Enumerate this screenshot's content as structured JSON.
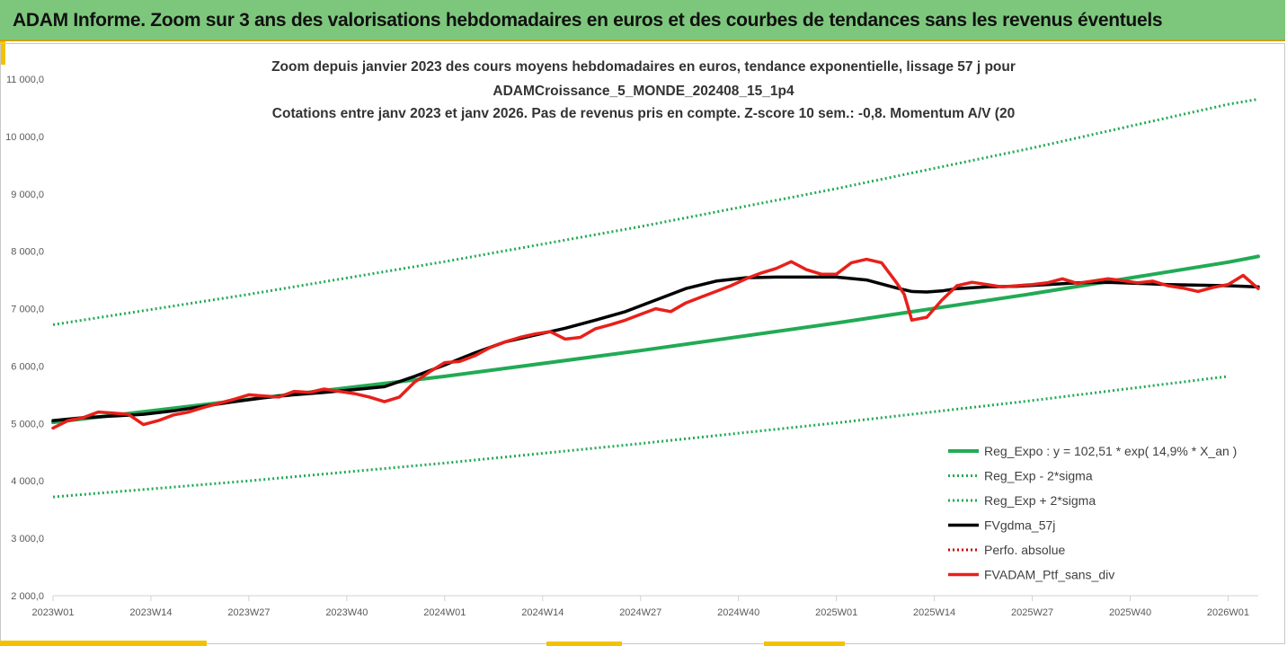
{
  "banner": {
    "title": "ADAM Informe. Zoom sur 3 ans des valorisations hebdomadaires en euros et des courbes de tendances sans les revenus éventuels"
  },
  "colors": {
    "banner_bg": "#7dc77d",
    "accent": "#f2c200",
    "trend": "#22aa55",
    "bands": "#22aa55",
    "smoothed": "#000000",
    "perf": "#cc0000",
    "price": "#e8201a"
  },
  "chart_data": {
    "type": "line",
    "title_lines": [
      "Zoom depuis janvier 2023 des cours moyens hebdomadaires  en euros, tendance exponentielle, lissage 57 j pour",
      "ADAMCroissance_5_MONDE_202408_15_1p4",
      "Cotations entre janv 2023 et janv 2026. Pas de revenus pris en compte. Z-score 10 sem.: -0,8. Momentum  A/V (20"
    ],
    "xlabel": "",
    "ylabel": "",
    "x_tick_labels": [
      "2023W01",
      "2023W14",
      "2023W27",
      "2023W40",
      "2024W01",
      "2024W14",
      "2024W27",
      "2024W40",
      "2025W01",
      "2025W14",
      "2025W27",
      "2025W40",
      "2026W01"
    ],
    "y_tick_labels": [
      "2 000,0",
      "3 000,0",
      "4 000,0",
      "5 000,0",
      "6 000,0",
      "7 000,0",
      "8 000,0",
      "9 000,0",
      "10 000,0",
      "11 000,0"
    ],
    "ylim": [
      2000,
      11000
    ],
    "x_unit": "weeks since 2023W01",
    "xlim": [
      0,
      160
    ],
    "grid": false,
    "legend_position": "bottom-right",
    "series": [
      {
        "name": "Reg_Expo : y = 102,51 * exp( 14,9% *  X_an )",
        "style": "solid",
        "width": 4,
        "color": "#22aa55",
        "x": [
          0,
          26,
          52,
          78,
          104,
          130,
          156,
          160
        ],
        "y": [
          5020,
          5420,
          5820,
          6270,
          6750,
          7260,
          7810,
          7910
        ]
      },
      {
        "name": "Reg_Exp - 2*sigma",
        "style": "dotted",
        "width": 3,
        "color": "#22aa55",
        "x": [
          0,
          26,
          52,
          78,
          104,
          130,
          156
        ],
        "y": [
          3720,
          4000,
          4310,
          4650,
          5010,
          5400,
          5820
        ]
      },
      {
        "name": "Reg_Exp + 2*sigma",
        "style": "dotted",
        "width": 3,
        "color": "#22aa55",
        "x": [
          0,
          26,
          52,
          78,
          104,
          130,
          156,
          160
        ],
        "y": [
          6720,
          7250,
          7820,
          8430,
          9090,
          9800,
          10560,
          10650
        ]
      },
      {
        "name": "FVgdma_57j",
        "style": "solid",
        "width": 3.5,
        "color": "#000000",
        "x": [
          0,
          4,
          8,
          12,
          16,
          20,
          24,
          28,
          32,
          36,
          40,
          44,
          48,
          52,
          56,
          60,
          64,
          68,
          72,
          76,
          80,
          84,
          88,
          92,
          96,
          100,
          104,
          108,
          112,
          114,
          116,
          118,
          120,
          124,
          128,
          132,
          136,
          140,
          144,
          148,
          152,
          156,
          160
        ],
        "y": [
          5050,
          5100,
          5130,
          5160,
          5220,
          5300,
          5380,
          5450,
          5500,
          5540,
          5590,
          5640,
          5820,
          6020,
          6230,
          6420,
          6540,
          6660,
          6800,
          6950,
          7150,
          7350,
          7480,
          7540,
          7550,
          7550,
          7550,
          7500,
          7360,
          7300,
          7290,
          7310,
          7350,
          7380,
          7390,
          7420,
          7450,
          7460,
          7440,
          7420,
          7410,
          7400,
          7380
        ]
      },
      {
        "name": "Perfo. absolue",
        "style": "dotted",
        "width": 3,
        "color": "#cc0000",
        "x": [],
        "y": []
      },
      {
        "name": "FVADAM_Ptf_sans_div",
        "style": "solid",
        "width": 3.5,
        "color": "#e8201a",
        "x": [
          0,
          2,
          4,
          6,
          8,
          10,
          12,
          14,
          16,
          18,
          20,
          22,
          24,
          26,
          28,
          30,
          32,
          34,
          36,
          38,
          40,
          42,
          44,
          46,
          48,
          50,
          52,
          54,
          56,
          58,
          60,
          62,
          64,
          66,
          68,
          70,
          72,
          74,
          76,
          78,
          80,
          82,
          84,
          86,
          88,
          90,
          92,
          94,
          96,
          98,
          100,
          102,
          104,
          106,
          108,
          110,
          112,
          113,
          114,
          116,
          118,
          120,
          122,
          124,
          126,
          128,
          130,
          132,
          134,
          136,
          138,
          140,
          142,
          144,
          146,
          148,
          150,
          152,
          154,
          156,
          158,
          160
        ],
        "y": [
          4920,
          5050,
          5100,
          5200,
          5180,
          5160,
          4980,
          5050,
          5150,
          5200,
          5280,
          5350,
          5420,
          5500,
          5480,
          5460,
          5560,
          5540,
          5600,
          5560,
          5520,
          5460,
          5380,
          5460,
          5720,
          5900,
          6060,
          6080,
          6180,
          6320,
          6420,
          6500,
          6560,
          6600,
          6470,
          6500,
          6650,
          6720,
          6800,
          6900,
          7000,
          6950,
          7100,
          7200,
          7300,
          7400,
          7520,
          7620,
          7700,
          7820,
          7680,
          7600,
          7600,
          7800,
          7860,
          7800,
          7450,
          7250,
          6800,
          6850,
          7150,
          7400,
          7460,
          7420,
          7380,
          7400,
          7420,
          7450,
          7520,
          7440,
          7480,
          7520,
          7490,
          7450,
          7480,
          7400,
          7360,
          7300,
          7370,
          7420,
          7580,
          7350
        ]
      }
    ]
  }
}
